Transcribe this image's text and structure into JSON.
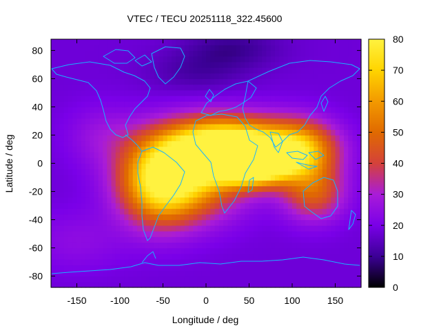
{
  "chart_data": {
    "type": "heatmap",
    "title": "VTEC / TECU 20251118_322.45600",
    "xlabel": "Longitude / deg",
    "ylabel": "Latitude / deg",
    "xlim": [
      -180,
      180
    ],
    "ylim": [
      -88,
      88
    ],
    "x_ticks": [
      -150,
      -100,
      -50,
      0,
      50,
      100,
      150
    ],
    "x_tick_labels": [
      "-150",
      "-100",
      "-50",
      "0",
      "50",
      "100",
      "150"
    ],
    "y_ticks": [
      80,
      60,
      40,
      20,
      0,
      -20,
      -40,
      -60,
      -80
    ],
    "y_tick_labels": [
      "80",
      "60",
      "40",
      "20",
      "0",
      "-20",
      "-40",
      "-60",
      "-80"
    ],
    "colorbar": {
      "range": [
        0,
        80
      ],
      "ticks": [
        0,
        10,
        20,
        30,
        40,
        50,
        60,
        70,
        80
      ],
      "tick_labels": [
        "0",
        "10",
        "20",
        "30",
        "40",
        "50",
        "60",
        "70",
        "80"
      ],
      "colormap": [
        "#000000",
        "#3c0096",
        "#7a00e8",
        "#a91cd8",
        "#d4423a",
        "#e06a00",
        "#f39a00",
        "#ffd400",
        "#fff240"
      ]
    },
    "field": {
      "background_tecu": 18,
      "crest_latitude_deg": 3,
      "features": [
        {
          "lon": 25,
          "lat": 12,
          "tecu": 72,
          "sigma_lon": 50,
          "sigma_lat": 14
        },
        {
          "lon": 55,
          "lat": 0,
          "tecu": 68,
          "sigma_lon": 30,
          "sigma_lat": 10
        },
        {
          "lon": -25,
          "lat": -10,
          "tecu": 45,
          "sigma_lon": 45,
          "sigma_lat": 20
        },
        {
          "lon": -55,
          "lat": -15,
          "tecu": 35,
          "sigma_lon": 30,
          "sigma_lat": 20
        },
        {
          "lon": 110,
          "lat": 10,
          "tecu": 40,
          "sigma_lon": 30,
          "sigma_lat": 14
        },
        {
          "lon": 125,
          "lat": -20,
          "tecu": 28,
          "sigma_lon": 25,
          "sigma_lat": 14
        },
        {
          "lon": -120,
          "lat": 20,
          "tecu": 8,
          "sigma_lon": 30,
          "sigma_lat": 15
        },
        {
          "lon": -150,
          "lat": -55,
          "tecu": 6,
          "sigma_lon": 40,
          "sigma_lat": 15
        },
        {
          "lon": 30,
          "lat": 82,
          "tecu": -8,
          "sigma_lon": 40,
          "sigma_lat": 10
        },
        {
          "lon": -10,
          "lat": 65,
          "tecu": -6,
          "sigma_lon": 40,
          "sigma_lat": 10
        }
      ]
    },
    "coastline_color": "#18b4ff",
    "frame_color": "#000000"
  }
}
